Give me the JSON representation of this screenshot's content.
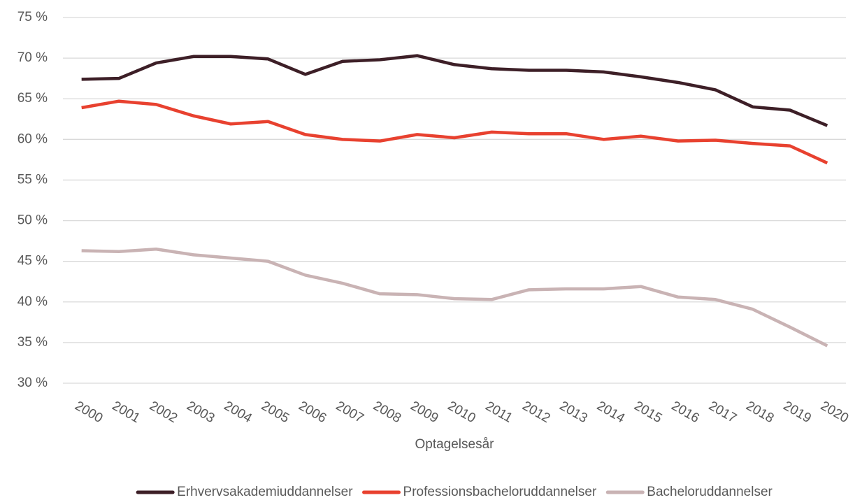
{
  "chart_data": {
    "type": "line",
    "x_label": "Optagelsesår",
    "categories": [
      "2000",
      "2001",
      "2002",
      "2003",
      "2004",
      "2005",
      "2006",
      "2007",
      "2008",
      "2009",
      "2010",
      "2011",
      "2012",
      "2013",
      "2014",
      "2015",
      "2016",
      "2017",
      "2018",
      "2019",
      "2020"
    ],
    "series": [
      {
        "name": "Erhvervsakademiuddannelser",
        "color": "#3d1f27",
        "values": [
          67.4,
          67.5,
          69.4,
          70.2,
          70.2,
          69.9,
          68.0,
          69.6,
          69.8,
          70.3,
          69.2,
          68.7,
          68.5,
          68.5,
          68.3,
          67.7,
          67.0,
          66.1,
          64.0,
          63.6,
          61.7
        ]
      },
      {
        "name": "Professionsbacheloruddannelser",
        "color": "#e8412f",
        "values": [
          63.9,
          64.7,
          64.3,
          62.9,
          61.9,
          62.2,
          60.6,
          60.0,
          59.8,
          60.6,
          60.2,
          60.9,
          60.7,
          60.7,
          60.0,
          60.4,
          59.8,
          59.9,
          59.5,
          59.2,
          57.1
        ]
      },
      {
        "name": "Bacheloruddannelser",
        "color": "#c9b3b4",
        "values": [
          46.3,
          46.2,
          46.5,
          45.8,
          45.4,
          45.0,
          43.3,
          42.3,
          41.0,
          40.9,
          40.4,
          40.3,
          41.5,
          41.6,
          41.6,
          41.9,
          40.6,
          40.3,
          39.1,
          36.9,
          34.6
        ]
      }
    ],
    "ylim": [
      30,
      75
    ],
    "yticks": [
      {
        "value": 30,
        "label": "30 %"
      },
      {
        "value": 35,
        "label": "35 %"
      },
      {
        "value": 40,
        "label": "40 %"
      },
      {
        "value": 45,
        "label": "45 %"
      },
      {
        "value": 50,
        "label": "50 %"
      },
      {
        "value": 55,
        "label": "55 %"
      },
      {
        "value": 60,
        "label": "60 %"
      },
      {
        "value": 65,
        "label": "65 %"
      },
      {
        "value": 70,
        "label": "70 %"
      },
      {
        "value": 75,
        "label": "75 %"
      }
    ],
    "grid": true,
    "legend": "bottom"
  }
}
